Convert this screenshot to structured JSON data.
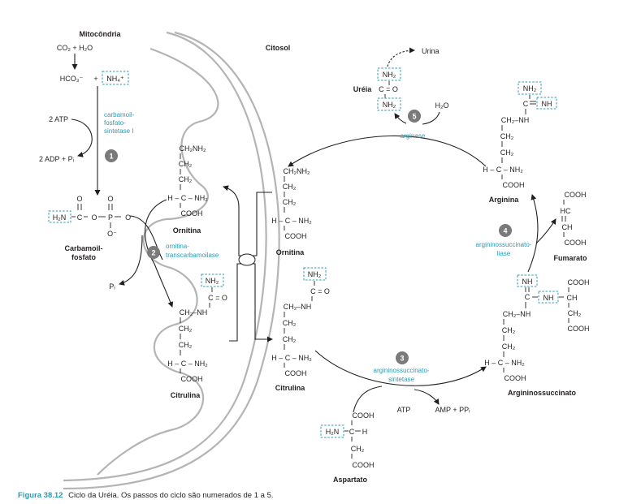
{
  "compartments": {
    "mito": "Mitocôndria",
    "cyto": "Citosol"
  },
  "reactants": {
    "co2_h2o": "CO₂ + H₂O",
    "hco3": "HCO₃⁻",
    "plus": "+",
    "nh4": "NH₄⁺",
    "atp2": "2 ATP",
    "adp2": "2 ADP + Pᵢ",
    "pi": "Pᵢ"
  },
  "enzymes": {
    "cps": [
      "carbamoil-",
      "fosfato-",
      "sintetase I"
    ],
    "otc": [
      "ornitina-",
      "transcarbamoilase"
    ],
    "arginase": "arginase",
    "ass": [
      "argininossuccinato-",
      "sintetase"
    ],
    "asl": [
      "argininossuccinato-",
      "liase"
    ]
  },
  "steps": [
    "1",
    "2",
    "3",
    "4",
    "5"
  ],
  "molecules": {
    "carbamoil": [
      "Carbamoil-",
      "fosfato"
    ],
    "ornitina": "Ornitina",
    "citrulina": "Citrulina",
    "aspartato": "Aspartato",
    "argininossuccinato": "Argininossuccinato",
    "fumarato": "Fumarato",
    "arginina": "Arginina",
    "ureia": "Uréia",
    "urina": "Urina"
  },
  "side": {
    "atp": "ATP",
    "amp": "AMP + PPᵢ",
    "h2o": "H₂O"
  },
  "formula": {
    "ch2nh2": "CH₂NH₂",
    "ch2": "CH₂",
    "ch2nh": "CH₂–NH",
    "nh2": "NH₂",
    "cooh": "COOH",
    "h": "H",
    "c": "C",
    "hc": "HC",
    "ch": "CH",
    "o": "O",
    "nh": "NH",
    "ominus": "O⁻",
    "h2n": "H₂N",
    "p": "P",
    "c_eq_o": "C = O",
    "c_eq_nh": "C = NH",
    "hc_nh2": "H – C – NH₂",
    "h_c_nh2_mid": "– C – NH₂"
  },
  "caption": {
    "label": "Figura 38.12",
    "text": "Ciclo da Uréia. Os passos do ciclo são numerados de 1 a 5."
  },
  "colors": {
    "accent": "#2a9bb5",
    "membrane": "#b4b4b4",
    "step_circle": "#7a7a7a"
  }
}
